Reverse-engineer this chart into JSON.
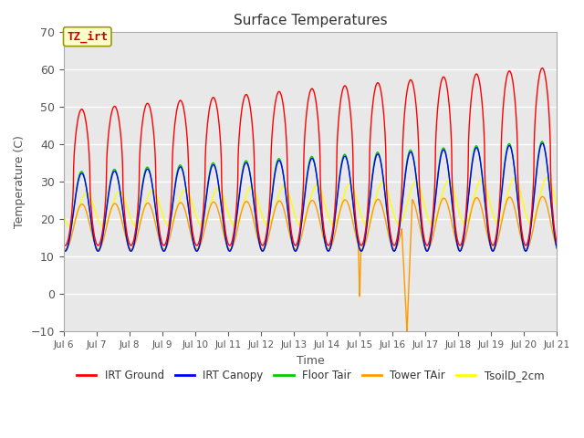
{
  "title": "Surface Temperatures",
  "xlabel": "Time",
  "ylabel": "Temperature (C)",
  "ylim": [
    -10,
    70
  ],
  "xlim_days": [
    6,
    21
  ],
  "plot_bg_color": "#e8e8e8",
  "fig_bg_color": "#ffffff",
  "grid_color": "#ffffff",
  "annotation_text": "TZ_irt",
  "annotation_bg": "#ffffcc",
  "annotation_fg": "#cc0000",
  "annotation_border": "#999900",
  "colors": {
    "IRT Ground": "#ff0000",
    "IRT Canopy": "#0000ff",
    "Floor Tair": "#00cc00",
    "Tower TAir": "#ff9900",
    "TsoilD_2cm": "#ffff00"
  },
  "tick_labels": [
    "Jul 6",
    "Jul 7",
    "Jul 8",
    "Jul 9",
    "Jul 10",
    "Jul 11",
    "Jul 12",
    "Jul 13",
    "Jul 14",
    "Jul 15",
    "Jul 16",
    "Jul 17",
    "Jul 18",
    "Jul 19",
    "Jul 20",
    "Jul 21"
  ],
  "tick_positions": [
    6,
    7,
    8,
    9,
    10,
    11,
    12,
    13,
    14,
    15,
    16,
    17,
    18,
    19,
    20,
    21
  ],
  "yticks": [
    -10,
    0,
    10,
    20,
    30,
    40,
    50,
    60,
    70
  ]
}
